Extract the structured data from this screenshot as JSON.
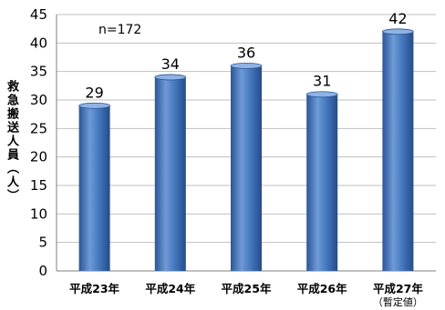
{
  "chart_data": {
    "type": "bar",
    "categories": [
      "平成23年",
      "平成24年",
      "平成25年",
      "平成26年",
      "平成27年"
    ],
    "category_sublabels": [
      "",
      "",
      "",
      "",
      "（暫定値）"
    ],
    "values": [
      29,
      34,
      36,
      31,
      42
    ],
    "value_labels": [
      "29",
      "34",
      "36",
      "31",
      "42"
    ],
    "title": "",
    "xlabel": "",
    "ylabel": "救急搬送人員（人）",
    "ylim": [
      0,
      45
    ],
    "yticks": [
      0,
      5,
      10,
      15,
      20,
      25,
      30,
      35,
      40,
      45
    ],
    "annotation": "n=172",
    "grid": true,
    "legend": "none",
    "bar_color": "#3f6fb5"
  }
}
